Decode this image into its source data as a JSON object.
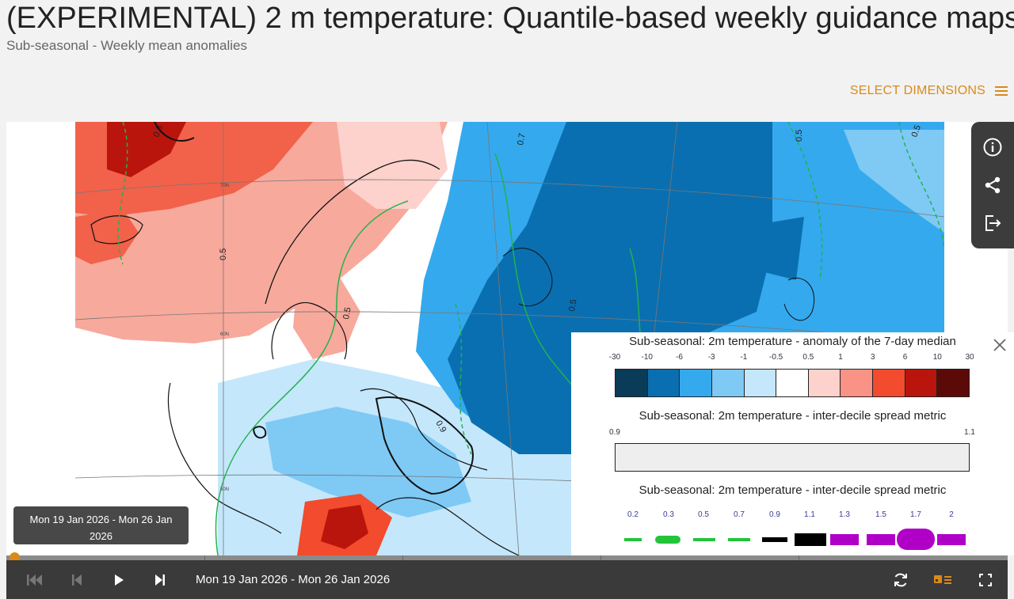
{
  "header": {
    "title": "(EXPERIMENTAL) 2 m temperature: Quantile-based weekly guidance maps",
    "subtitle": "Sub-seasonal - Weekly mean anomalies",
    "select_dimensions_label": "SELECT DIMENSIONS"
  },
  "side_toolbar": {
    "icons": [
      "info-icon",
      "share-icon",
      "export-icon"
    ]
  },
  "map": {
    "contour_labels": [
      "0.3",
      "0.5",
      "0.7",
      "0.5",
      "0.5",
      "0.5",
      "0.9",
      "0.5"
    ],
    "graticule_labels": [
      "70N",
      "60N",
      "50N"
    ]
  },
  "legend": {
    "title_1": "Sub-seasonal: 2m temperature - anomaly of the 7-day median",
    "anomaly_ticks": [
      "-30",
      "-10",
      "-6",
      "-3",
      "-1",
      "-0.5",
      "0.5",
      "1",
      "3",
      "6",
      "10",
      "30"
    ],
    "anomaly_colors": [
      "#0a3b58",
      "#0a6fb0",
      "#34a9ee",
      "#7fc9f5",
      "#c4e7fb",
      "#ffffff",
      "#fdd1cc",
      "#f99385",
      "#f24b2d",
      "#b9150c",
      "#5b0a08"
    ],
    "title_2": "Sub-seasonal: 2m temperature - inter-decile spread metric",
    "spread_ticks": [
      "0.9",
      "1.1"
    ],
    "title_3": "Sub-seasonal: 2m temperature - inter-decile spread metric",
    "contour_ticks": [
      "0.2",
      "0.3",
      "0.5",
      "0.7",
      "0.9",
      "1.1",
      "1.3",
      "1.5",
      "1.7",
      "2"
    ]
  },
  "timeline": {
    "tooltip": "Mon 19 Jan 2026 - Mon 26 Jan 2026",
    "current_range": "Mon 19 Jan 2026 - Mon 26 Jan 2026"
  },
  "colors": {
    "accent": "#d98a1b",
    "controls_bg": "#3a3a3a"
  }
}
